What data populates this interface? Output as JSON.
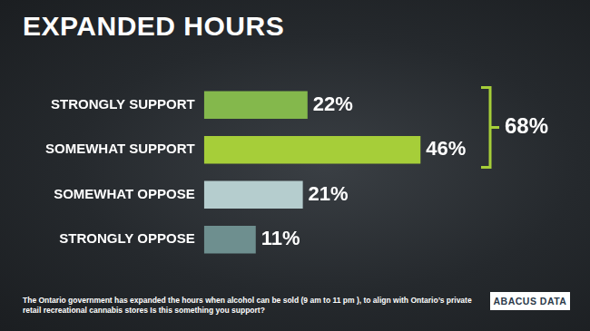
{
  "chart_data": {
    "type": "bar",
    "orientation": "horizontal",
    "title": "EXPANDED HOURS",
    "categories": [
      "STRONGLY SUPPORT",
      "SOMEWHAT SUPPORT",
      "SOMEWHAT OPPOSE",
      "STRONGLY OPPOSE"
    ],
    "values": [
      22,
      46,
      21,
      11
    ],
    "value_labels": [
      "22%",
      "46%",
      "21%",
      "11%"
    ],
    "colors": [
      "#84b84c",
      "#a6ce39",
      "#b5cdce",
      "#6e8f8f"
    ],
    "data_labels": true,
    "tick_labels": "y",
    "grid": false,
    "annotations": [
      {
        "text": "68%",
        "spans": [
          "STRONGLY SUPPORT",
          "SOMEWHAT SUPPORT"
        ]
      }
    ],
    "note": "The Ontario government has expanded the hours when alcohol can be sold (9 am  to 11 pm ), to align with Ontario’s private retail recreational cannabis stores  Is this something you support?",
    "source": "ABACUS DATA"
  }
}
